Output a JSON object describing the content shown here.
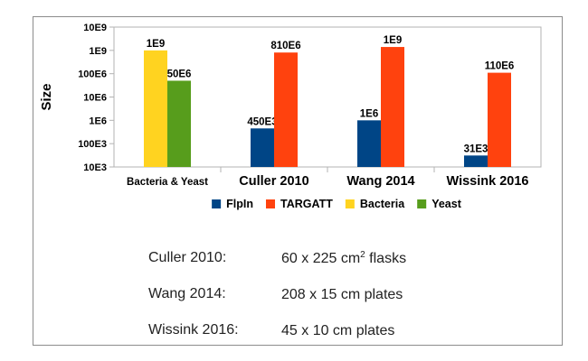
{
  "chart_data": {
    "type": "bar",
    "ylabel": "Size",
    "yscale": "log",
    "ylim": [
      10000,
      10000000000
    ],
    "ytick_labels": [
      "10E3",
      "100E3",
      "1E6",
      "10E6",
      "100E6",
      "1E9",
      "10E9"
    ],
    "categories": [
      "Bacteria & Yeast",
      "Culler 2010",
      "Wang 2014",
      "Wissink 2016"
    ],
    "series": [
      {
        "name": "FlpIn",
        "color": "#004586",
        "values": [
          null,
          450000,
          1000000,
          31000
        ],
        "labels": [
          null,
          "450E3",
          "1E6",
          "31E3"
        ]
      },
      {
        "name": "TARGATT",
        "color": "#ff420e",
        "values": [
          null,
          810000000,
          1400000000,
          110000000
        ],
        "labels": [
          null,
          "810E6",
          "1E9",
          "110E6"
        ]
      },
      {
        "name": "Bacteria",
        "color": "#ffd320",
        "values": [
          1000000000,
          null,
          null,
          null
        ],
        "labels": [
          "1E9",
          null,
          null,
          null
        ]
      },
      {
        "name": "Yeast",
        "color": "#579d1c",
        "values": [
          50000000,
          null,
          null,
          null
        ],
        "labels": [
          "50E6",
          null,
          null,
          null
        ]
      }
    ],
    "legend_position": "bottom",
    "grid": false
  },
  "notes": [
    {
      "key": "Culler 2010:",
      "value_pre": "60 x 225 cm",
      "value_sup": "2",
      "value_post": " flasks"
    },
    {
      "key": "Wang 2014:",
      "value_pre": "208 x 15 cm plates",
      "value_sup": "",
      "value_post": ""
    },
    {
      "key": "Wissink 2016:",
      "value_pre": "45 x 10 cm plates",
      "value_sup": "",
      "value_post": ""
    }
  ]
}
